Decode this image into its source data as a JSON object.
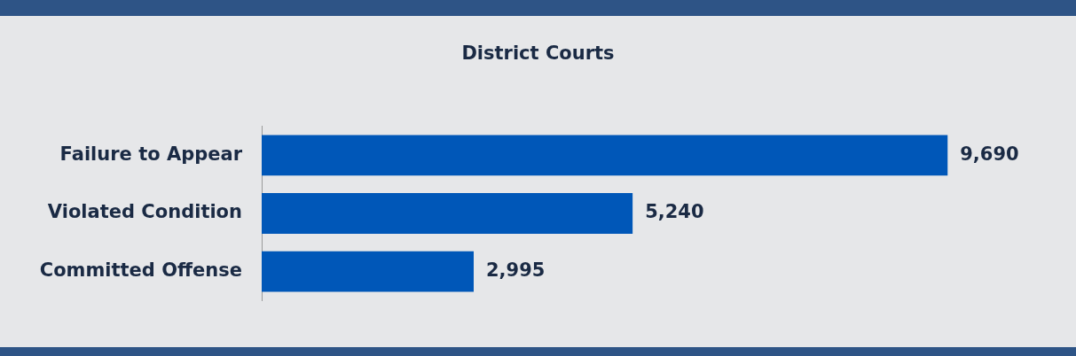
{
  "chart_data": {
    "type": "bar",
    "orientation": "horizontal",
    "title": "District Courts",
    "categories": [
      "Failure to Appear",
      "Violated Condition",
      "Committed Offense"
    ],
    "values": [
      9690,
      5240,
      2995
    ],
    "value_labels": [
      "9,690",
      "5,240",
      "2,995"
    ],
    "color": "#0057b8",
    "grid": false,
    "legend": false
  }
}
